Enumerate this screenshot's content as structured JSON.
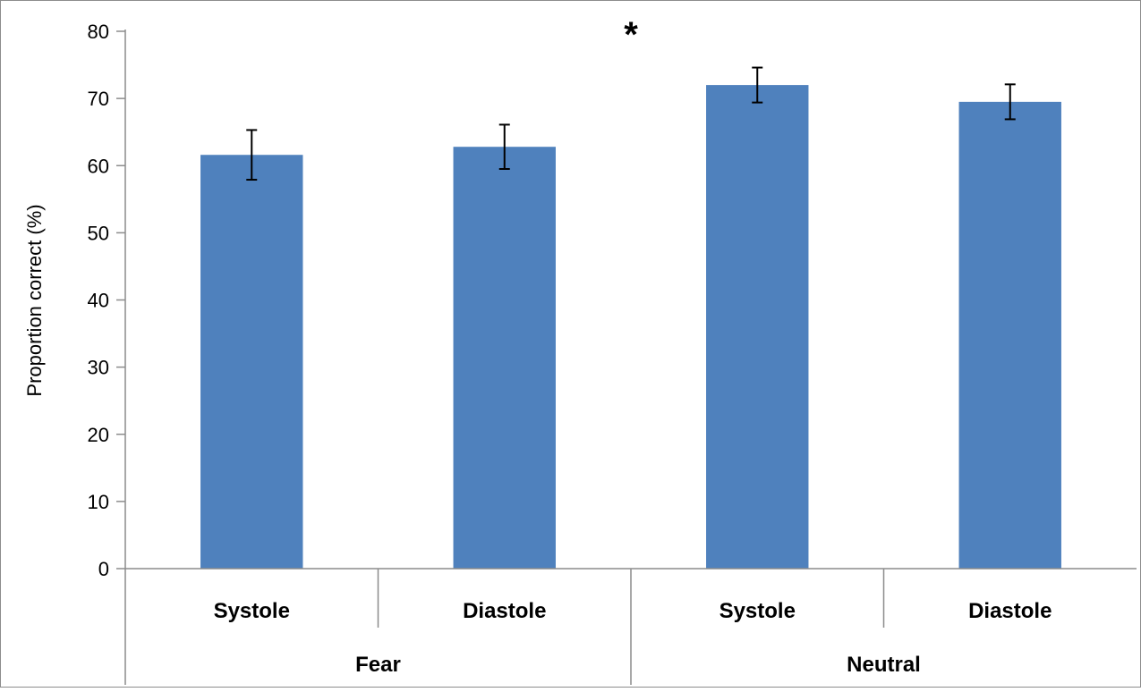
{
  "chart_data": {
    "type": "bar",
    "title": "",
    "xlabel": "",
    "ylabel": "Proportion correct (%)",
    "ylim": [
      0,
      80
    ],
    "yticks": [
      0,
      10,
      20,
      30,
      40,
      50,
      60,
      70,
      80
    ],
    "grid": false,
    "categories": [
      "Systole",
      "Diastole",
      "Systole",
      "Diastole"
    ],
    "groups": [
      {
        "label": "Fear",
        "categories": [
          "Systole",
          "Diastole"
        ]
      },
      {
        "label": "Neutral",
        "categories": [
          "Systole",
          "Diastole"
        ]
      }
    ],
    "series": [
      {
        "values": [
          61.6,
          62.8,
          72.0,
          69.5
        ],
        "errors": [
          3.7,
          3.3,
          2.6,
          2.6
        ],
        "color": "#4f81bd"
      }
    ],
    "annotations": [
      {
        "text": "*"
      }
    ]
  }
}
